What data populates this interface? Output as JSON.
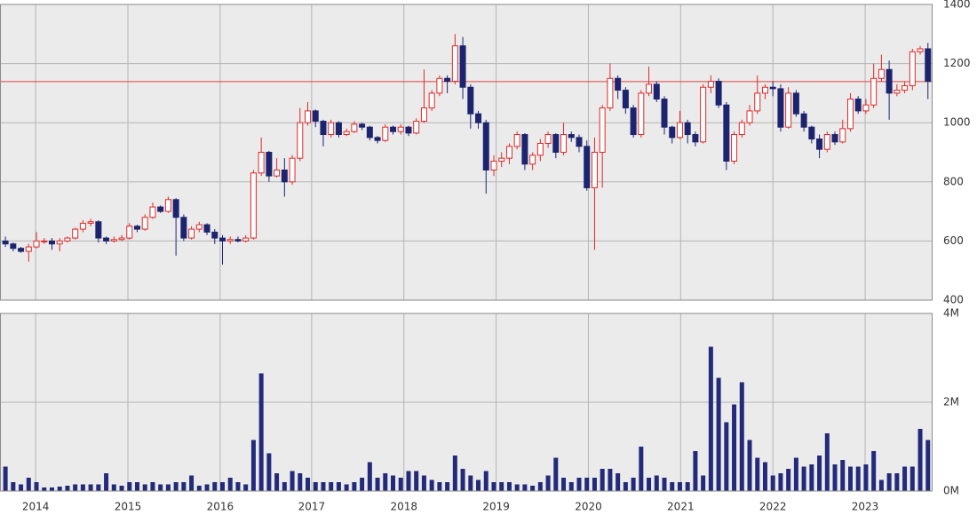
{
  "chart_data": {
    "type": "candlestick",
    "open": [
      600,
      590,
      575,
      565,
      580,
      600,
      600,
      590,
      600,
      610,
      640,
      660,
      665,
      610,
      600,
      605,
      610,
      650,
      640,
      680,
      715,
      700,
      740,
      680,
      610,
      640,
      655,
      630,
      610,
      600,
      605,
      600,
      610,
      830,
      900,
      820,
      840,
      800,
      880,
      1000,
      1040,
      1005,
      960,
      1000,
      960,
      970,
      995,
      985,
      950,
      940,
      985,
      970,
      985,
      965,
      1005,
      1050,
      1100,
      1150,
      1140,
      1260,
      1120,
      1030,
      1000,
      840,
      870,
      880,
      920,
      960,
      860,
      890,
      930,
      960,
      900,
      960,
      950,
      920,
      780,
      900,
      1050,
      1150,
      1110,
      1050,
      960,
      1100,
      1130,
      1080,
      985,
      950,
      1000,
      960,
      935,
      1120,
      1140,
      1060,
      870,
      960,
      1000,
      1040,
      1100,
      1120,
      1115,
      985,
      1100,
      1030,
      985,
      945,
      910,
      960,
      935,
      980,
      1080,
      1040,
      1060,
      1150,
      1180,
      1100,
      1110,
      1125,
      1240,
      1250
    ],
    "high": [
      615,
      595,
      580,
      590,
      630,
      610,
      610,
      610,
      615,
      645,
      670,
      675,
      670,
      615,
      615,
      620,
      660,
      655,
      690,
      730,
      720,
      750,
      745,
      690,
      650,
      665,
      660,
      640,
      620,
      615,
      615,
      620,
      840,
      950,
      905,
      880,
      880,
      890,
      1050,
      1070,
      1045,
      1010,
      1010,
      1005,
      980,
      1005,
      1000,
      990,
      955,
      995,
      990,
      995,
      990,
      1015,
      1180,
      1110,
      1160,
      1160,
      1300,
      1290,
      1130,
      1040,
      1010,
      890,
      900,
      930,
      970,
      965,
      900,
      945,
      970,
      965,
      1000,
      970,
      960,
      940,
      950,
      1060,
      1200,
      1160,
      1120,
      1060,
      1110,
      1190,
      1140,
      1090,
      990,
      1040,
      1010,
      970,
      1130,
      1160,
      1150,
      1070,
      970,
      1010,
      1060,
      1160,
      1130,
      1140,
      1130,
      1120,
      1110,
      1040,
      990,
      960,
      970,
      970,
      1010,
      1100,
      1090,
      1080,
      1200,
      1230,
      1210,
      1130,
      1140,
      1250,
      1260,
      1270
    ],
    "low": [
      580,
      565,
      560,
      530,
      575,
      590,
      570,
      565,
      595,
      605,
      630,
      650,
      595,
      590,
      595,
      600,
      605,
      630,
      635,
      675,
      695,
      695,
      550,
      600,
      605,
      630,
      620,
      590,
      520,
      590,
      595,
      595,
      605,
      820,
      800,
      815,
      750,
      790,
      870,
      990,
      985,
      920,
      950,
      950,
      955,
      965,
      975,
      940,
      930,
      935,
      960,
      960,
      955,
      960,
      1000,
      1040,
      1090,
      1100,
      1130,
      1080,
      980,
      980,
      760,
      820,
      850,
      860,
      910,
      840,
      840,
      870,
      915,
      880,
      890,
      935,
      900,
      770,
      570,
      780,
      1040,
      1080,
      1030,
      950,
      950,
      1090,
      1070,
      960,
      930,
      945,
      930,
      920,
      930,
      1100,
      1050,
      840,
      860,
      950,
      990,
      1030,
      1080,
      1090,
      970,
      980,
      1020,
      970,
      930,
      880,
      900,
      925,
      930,
      970,
      1030,
      1030,
      1050,
      1140,
      1010,
      1090,
      1100,
      1110,
      1230,
      1080
    ],
    "close": [
      590,
      575,
      565,
      580,
      600,
      600,
      590,
      600,
      610,
      640,
      660,
      665,
      610,
      600,
      605,
      610,
      650,
      640,
      680,
      715,
      700,
      740,
      680,
      610,
      640,
      655,
      630,
      610,
      600,
      605,
      600,
      610,
      830,
      900,
      820,
      840,
      800,
      880,
      1000,
      1040,
      1005,
      960,
      1000,
      960,
      970,
      995,
      985,
      950,
      940,
      985,
      970,
      985,
      965,
      1005,
      1050,
      1100,
      1150,
      1140,
      1260,
      1120,
      1030,
      1000,
      840,
      870,
      880,
      920,
      960,
      860,
      890,
      930,
      960,
      900,
      960,
      950,
      920,
      780,
      900,
      1050,
      1150,
      1110,
      1050,
      960,
      1100,
      1130,
      1080,
      985,
      950,
      1000,
      960,
      935,
      1120,
      1140,
      1060,
      870,
      960,
      1000,
      1040,
      1100,
      1120,
      1115,
      985,
      1100,
      1030,
      985,
      945,
      910,
      960,
      935,
      980,
      1080,
      1040,
      1060,
      1150,
      1180,
      1100,
      1110,
      1125,
      1240,
      1250,
      1140
    ],
    "up_color": "#e02828",
    "down_color": "#1c2470",
    "ylim": [
      400,
      1400
    ],
    "yticks": [
      400,
      600,
      800,
      1000,
      1200,
      1400
    ],
    "xlim": [
      -0.7,
      119.6
    ],
    "xticks": [
      {
        "value": 3.9,
        "label": "2014"
      },
      {
        "value": 15.8,
        "label": "2015"
      },
      {
        "value": 27.7,
        "label": "2016"
      },
      {
        "value": 39.5,
        "label": "2017"
      },
      {
        "value": 51.4,
        "label": "2018"
      },
      {
        "value": 63.3,
        "label": "2019"
      },
      {
        "value": 75.2,
        "label": "2020"
      },
      {
        "value": 87.1,
        "label": "2021"
      },
      {
        "value": 99.0,
        "label": "2022"
      },
      {
        "value": 110.9,
        "label": "2023"
      }
    ],
    "reference_line": 1139,
    "reference_color": "#e04040",
    "grid": true,
    "volume": {
      "color": "#232a7a",
      "values": [
        550000,
        200000,
        150000,
        300000,
        200000,
        80000,
        80000,
        100000,
        120000,
        150000,
        150000,
        150000,
        150000,
        400000,
        150000,
        120000,
        200000,
        200000,
        150000,
        200000,
        150000,
        150000,
        200000,
        200000,
        350000,
        120000,
        150000,
        200000,
        200000,
        300000,
        200000,
        150000,
        1150000,
        2650000,
        850000,
        400000,
        200000,
        450000,
        400000,
        300000,
        200000,
        200000,
        200000,
        200000,
        150000,
        200000,
        300000,
        650000,
        300000,
        400000,
        350000,
        300000,
        450000,
        450000,
        350000,
        250000,
        200000,
        200000,
        800000,
        500000,
        350000,
        250000,
        450000,
        200000,
        200000,
        200000,
        150000,
        150000,
        120000,
        200000,
        350000,
        750000,
        300000,
        200000,
        300000,
        300000,
        300000,
        500000,
        500000,
        400000,
        200000,
        300000,
        1000000,
        300000,
        350000,
        300000,
        200000,
        200000,
        200000,
        900000,
        350000,
        3250000,
        2550000,
        1550000,
        1950000,
        2450000,
        1150000,
        750000,
        650000,
        350000,
        400000,
        500000,
        750000,
        550000,
        600000,
        800000,
        1300000,
        600000,
        700000,
        550000,
        550000,
        600000,
        900000,
        250000,
        400000,
        400000,
        550000,
        550000,
        1400000,
        1150000
      ],
      "ylim": [
        0,
        4000000
      ],
      "yticks": [
        {
          "value": 0,
          "label": "0M"
        },
        {
          "value": 2000000,
          "label": "2M"
        },
        {
          "value": 4000000,
          "label": "4M"
        }
      ]
    }
  }
}
